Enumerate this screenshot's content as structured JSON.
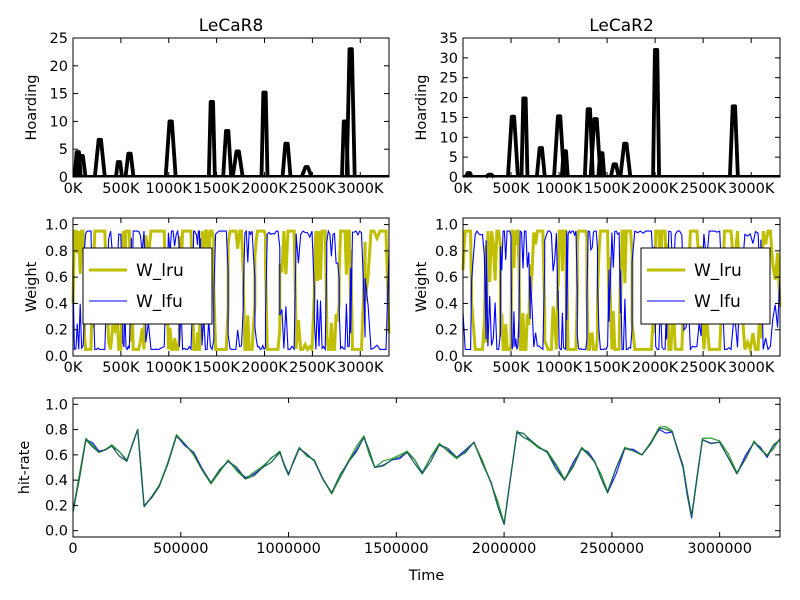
{
  "figure": {
    "background": "#ffffff"
  },
  "chart_data": [
    {
      "id": "lecar8-hoarding",
      "type": "line",
      "title": "LeCaR8",
      "xlabel": "",
      "ylabel": "Hoarding",
      "xlim": [
        0,
        3300000
      ],
      "ylim": [
        0,
        25
      ],
      "xticks": [
        0,
        500000,
        1000000,
        1500000,
        2000000,
        2500000,
        3000000
      ],
      "xtick_labels": [
        "0K",
        "500K",
        "1000K",
        "1500K",
        "2000K",
        "2500K",
        "3000K"
      ],
      "yticks": [
        0,
        5,
        10,
        15,
        20,
        25
      ],
      "ytick_labels": [
        "0",
        "5",
        "10",
        "15",
        "20",
        "25"
      ],
      "grid": false,
      "series": [
        {
          "color": "#000000",
          "spikes": [
            [
              50000,
              4.5
            ],
            [
              90000,
              3.8
            ],
            [
              280000,
              6.7
            ],
            [
              480000,
              2.7
            ],
            [
              590000,
              4.2
            ],
            [
              1020000,
              10
            ],
            [
              1450000,
              13.5
            ],
            [
              1610000,
              8.3
            ],
            [
              1720000,
              4.6
            ],
            [
              2000000,
              15.2
            ],
            [
              2230000,
              6
            ],
            [
              2440000,
              1.8
            ],
            [
              2840000,
              10
            ],
            [
              2900000,
              23
            ]
          ]
        }
      ]
    },
    {
      "id": "lecar2-hoarding",
      "type": "line",
      "title": "LeCaR2",
      "xlabel": "",
      "ylabel": "Hoarding",
      "xlim": [
        0,
        3300000
      ],
      "ylim": [
        0,
        35
      ],
      "xticks": [
        0,
        500000,
        1000000,
        1500000,
        2000000,
        2500000,
        3000000
      ],
      "xtick_labels": [
        "0K",
        "500K",
        "1000K",
        "1500K",
        "2000K",
        "2500K",
        "3000K"
      ],
      "yticks": [
        0,
        5,
        10,
        15,
        20,
        25,
        30,
        35
      ],
      "ytick_labels": [
        "0",
        "5",
        "10",
        "15",
        "20",
        "25",
        "30",
        "35"
      ],
      "grid": false,
      "series": [
        {
          "color": "#000000",
          "spikes": [
            [
              60000,
              1
            ],
            [
              280000,
              0.6
            ],
            [
              520000,
              15.2
            ],
            [
              640000,
              19.8
            ],
            [
              810000,
              7.3
            ],
            [
              1000000,
              15.3
            ],
            [
              1060000,
              6.5
            ],
            [
              1310000,
              17.1
            ],
            [
              1380000,
              14.6
            ],
            [
              1440000,
              6
            ],
            [
              1580000,
              3.2
            ],
            [
              1690000,
              8.4
            ],
            [
              2010000,
              32
            ],
            [
              2820000,
              17.8
            ]
          ]
        }
      ]
    },
    {
      "id": "lecar8-weight",
      "type": "line",
      "title": "",
      "xlabel": "",
      "ylabel": "Weight",
      "xlim": [
        0,
        3300000
      ],
      "ylim": [
        0,
        1.05
      ],
      "xticks": [
        0,
        500000,
        1000000,
        1500000,
        2000000,
        2500000,
        3000000
      ],
      "xtick_labels": [
        "0K",
        "500K",
        "1000K",
        "1500K",
        "2000K",
        "2500K",
        "3000K"
      ],
      "yticks": [
        0,
        0.2,
        0.4,
        0.6,
        0.8,
        1.0
      ],
      "ytick_labels": [
        "0.0",
        "0.2",
        "0.4",
        "0.6",
        "0.8",
        "1.0"
      ],
      "grid": false,
      "legend": "center-left",
      "switch_points": [
        0,
        120000,
        210000,
        350000,
        520000,
        610000,
        760000,
        980000,
        1110000,
        1250000,
        1330000,
        1470000,
        1620000,
        1780000,
        1900000,
        2010000,
        2160000,
        2330000,
        2520000,
        2650000,
        2780000,
        2900000,
        3050000,
        3300000
      ],
      "series": [
        {
          "name": "W_lru",
          "color": "#bfbf00",
          "value_high": 0.95,
          "value_low": 0.05
        },
        {
          "name": "W_lfu",
          "color": "#0000ff",
          "value_high": 0.95,
          "value_low": 0.05
        }
      ]
    },
    {
      "id": "lecar2-weight",
      "type": "line",
      "title": "",
      "xlabel": "",
      "ylabel": "Weight",
      "xlim": [
        0,
        3300000
      ],
      "ylim": [
        0,
        1.05
      ],
      "xticks": [
        0,
        500000,
        1000000,
        1500000,
        2000000,
        2500000,
        3000000
      ],
      "xtick_labels": [
        "0K",
        "500K",
        "1000K",
        "1500K",
        "2000K",
        "2500K",
        "3000K"
      ],
      "yticks": [
        0,
        0.2,
        0.4,
        0.6,
        0.8,
        1.0
      ],
      "ytick_labels": [
        "0.0",
        "0.2",
        "0.4",
        "0.6",
        "0.8",
        "1.0"
      ],
      "grid": false,
      "legend": "center-right",
      "switch_points": [
        0,
        90000,
        240000,
        390000,
        500000,
        580000,
        700000,
        850000,
        990000,
        1080000,
        1190000,
        1290000,
        1400000,
        1520000,
        1640000,
        1760000,
        1990000,
        2120000,
        2300000,
        2480000,
        2700000,
        2880000,
        3100000,
        3300000
      ],
      "series": [
        {
          "name": "W_lru",
          "color": "#bfbf00",
          "value_high": 0.95,
          "value_low": 0.05
        },
        {
          "name": "W_lfu",
          "color": "#0000ff",
          "value_high": 0.95,
          "value_low": 0.05
        }
      ]
    },
    {
      "id": "hit-rate",
      "type": "line",
      "title": "",
      "xlabel": "Time",
      "ylabel": "hit-rate",
      "xlim": [
        0,
        3280000
      ],
      "ylim": [
        -0.05,
        1.05
      ],
      "xticks": [
        0,
        500000,
        1000000,
        1500000,
        2000000,
        2500000,
        3000000
      ],
      "xtick_labels": [
        "0",
        "500000",
        "1000000",
        "1500000",
        "2000000",
        "2500000",
        "3000000"
      ],
      "yticks": [
        0,
        0.2,
        0.4,
        0.6,
        0.8,
        1.0
      ],
      "ytick_labels": [
        "0.0",
        "0.2",
        "0.4",
        "0.6",
        "0.8",
        "1.0"
      ],
      "grid": false,
      "x": [
        0,
        60000,
        120000,
        180000,
        250000,
        300000,
        330000,
        400000,
        480000,
        560000,
        640000,
        720000,
        800000,
        880000,
        960000,
        1000000,
        1050000,
        1120000,
        1200000,
        1280000,
        1350000,
        1400000,
        1480000,
        1550000,
        1620000,
        1700000,
        1780000,
        1860000,
        1940000,
        2000000,
        2060000,
        2120000,
        2200000,
        2280000,
        2360000,
        2420000,
        2480000,
        2560000,
        2640000,
        2720000,
        2780000,
        2830000,
        2870000,
        2920000,
        3000000,
        3080000,
        3160000,
        3220000,
        3280000
      ],
      "series": [
        {
          "color": "#2020ff",
          "values": [
            0.15,
            0.72,
            0.63,
            0.67,
            0.55,
            0.8,
            0.2,
            0.35,
            0.75,
            0.62,
            0.38,
            0.55,
            0.42,
            0.5,
            0.62,
            0.45,
            0.65,
            0.55,
            0.3,
            0.55,
            0.74,
            0.5,
            0.56,
            0.62,
            0.46,
            0.68,
            0.58,
            0.7,
            0.38,
            0.05,
            0.78,
            0.72,
            0.62,
            0.4,
            0.65,
            0.55,
            0.3,
            0.65,
            0.6,
            0.8,
            0.78,
            0.5,
            0.1,
            0.72,
            0.7,
            0.45,
            0.7,
            0.58,
            0.72
          ]
        },
        {
          "color": "#2a9a2a",
          "values": [
            0.16,
            0.73,
            0.62,
            0.68,
            0.56,
            0.8,
            0.19,
            0.36,
            0.76,
            0.6,
            0.37,
            0.56,
            0.41,
            0.51,
            0.63,
            0.44,
            0.66,
            0.56,
            0.29,
            0.56,
            0.75,
            0.5,
            0.57,
            0.63,
            0.45,
            0.69,
            0.57,
            0.7,
            0.37,
            0.06,
            0.79,
            0.71,
            0.63,
            0.41,
            0.66,
            0.54,
            0.31,
            0.66,
            0.6,
            0.82,
            0.79,
            0.52,
            0.12,
            0.73,
            0.71,
            0.46,
            0.71,
            0.6,
            0.73
          ]
        },
        {
          "color": "#1a6050",
          "values": [
            0.15,
            0.72,
            0.62,
            0.67,
            0.55,
            0.8,
            0.19,
            0.35,
            0.75,
            0.61,
            0.38,
            0.55,
            0.41,
            0.5,
            0.62,
            0.44,
            0.65,
            0.55,
            0.3,
            0.55,
            0.74,
            0.5,
            0.56,
            0.62,
            0.45,
            0.68,
            0.58,
            0.7,
            0.38,
            0.05,
            0.78,
            0.72,
            0.62,
            0.4,
            0.65,
            0.55,
            0.3,
            0.65,
            0.6,
            0.81,
            0.78,
            0.51,
            0.11,
            0.72,
            0.7,
            0.45,
            0.7,
            0.59,
            0.72
          ]
        }
      ]
    }
  ]
}
